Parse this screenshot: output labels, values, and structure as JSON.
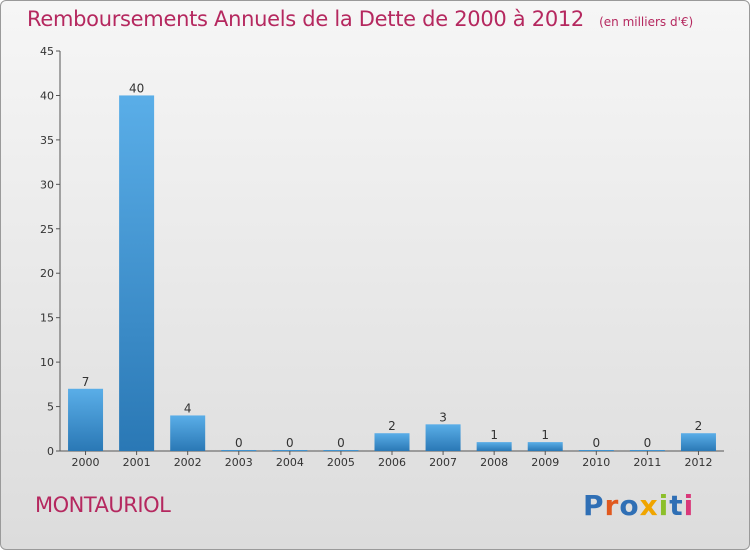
{
  "header": {
    "title": "Remboursements Annuels de la Dette de 2000 à 2012",
    "subtitle": "(en milliers d'€)"
  },
  "footer": {
    "commune": "MONTAURIOL",
    "logo_text": "Proxiti",
    "logo_letters": [
      {
        "ch": "P",
        "color": "#2f6fb5"
      },
      {
        "ch": "r",
        "color": "#e0591f"
      },
      {
        "ch": "o",
        "color": "#2f6fb5"
      },
      {
        "ch": "x",
        "color": "#f0a500"
      },
      {
        "ch": "i",
        "color": "#8cbf2a"
      },
      {
        "ch": "t",
        "color": "#2f6fb5"
      },
      {
        "ch": "i",
        "color": "#d9387a"
      }
    ]
  },
  "colors": {
    "bar_top": "#5aaee8",
    "bar_bottom": "#2a78b5",
    "accent": "#b5285f"
  },
  "chart_data": {
    "type": "bar",
    "title": "Remboursements Annuels de la Dette de 2000 à 2012",
    "subtitle": "(en milliers d'€)",
    "xlabel": "",
    "ylabel": "",
    "categories": [
      "2000",
      "2001",
      "2002",
      "2003",
      "2004",
      "2005",
      "2006",
      "2007",
      "2008",
      "2009",
      "2010",
      "2011",
      "2012"
    ],
    "values": [
      7,
      40,
      4,
      0,
      0,
      0,
      2,
      3,
      1,
      1,
      0,
      0,
      2
    ],
    "ylim": [
      0,
      45
    ],
    "yticks": [
      0,
      5,
      10,
      15,
      20,
      25,
      30,
      35,
      40,
      45
    ],
    "grid": false,
    "data_labels": true
  }
}
